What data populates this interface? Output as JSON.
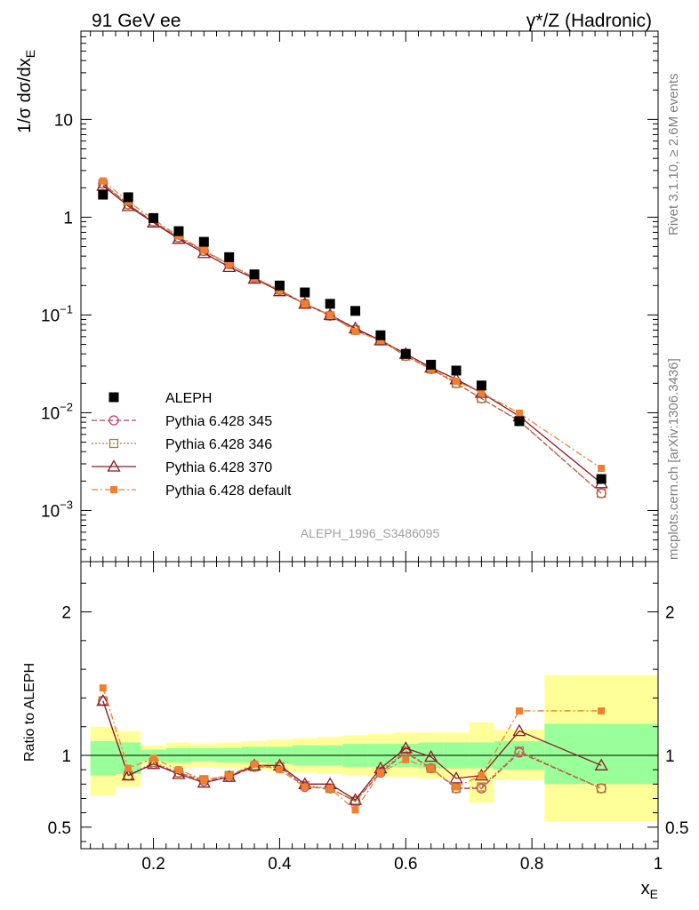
{
  "header": {
    "left_title": "91 GeV ee",
    "right_title": "γ*/Z (Hadronic)",
    "side_text_top": "Rivet 3.1.10, ≥ 2.6M events",
    "side_text_bottom": "mcplots.cern.ch [arXiv:1306.3436]",
    "analysis_label": "ALEPH_1996_S3486095"
  },
  "chart_data": [
    {
      "type": "scatter",
      "panel": "main",
      "ylabel": "1/σ dσ/dx_E",
      "yscale": "log",
      "ylim": [
        0.0003,
        80
      ],
      "xlim": [
        0.085,
        1.0
      ],
      "yticks": [
        {
          "value": 0.001,
          "base": "10",
          "exp": "−3"
        },
        {
          "value": 0.01,
          "base": "10",
          "exp": "−2"
        },
        {
          "value": 0.1,
          "base": "10",
          "exp": "−1"
        },
        {
          "value": 1,
          "label": "1"
        },
        {
          "value": 10,
          "label": "10"
        }
      ],
      "legend_position": "bottom-left",
      "series": [
        {
          "name": "ALEPH",
          "color": "#000000",
          "marker": "filled-square",
          "x": [
            0.12,
            0.16,
            0.2,
            0.24,
            0.28,
            0.32,
            0.36,
            0.4,
            0.44,
            0.48,
            0.52,
            0.56,
            0.6,
            0.64,
            0.68,
            0.72,
            0.78,
            0.91
          ],
          "values": [
            1.7,
            1.6,
            0.98,
            0.72,
            0.56,
            0.39,
            0.26,
            0.2,
            0.17,
            0.13,
            0.11,
            0.062,
            0.04,
            0.031,
            0.027,
            0.019,
            0.0082,
            0.0021
          ]
        },
        {
          "name": "Pythia 6.428 345",
          "color": "#c0405f",
          "marker": "open-circle",
          "dash": "6,3",
          "x": [
            0.12,
            0.16,
            0.2,
            0.24,
            0.28,
            0.32,
            0.36,
            0.4,
            0.44,
            0.48,
            0.52,
            0.56,
            0.6,
            0.64,
            0.68,
            0.72,
            0.78,
            0.91
          ],
          "values": [
            2.2,
            1.35,
            0.9,
            0.62,
            0.45,
            0.33,
            0.24,
            0.18,
            0.13,
            0.098,
            0.07,
            0.055,
            0.038,
            0.028,
            0.02,
            0.014,
            0.0082,
            0.0015
          ]
        },
        {
          "name": "Pythia 6.428 346",
          "color": "#b07d3a",
          "marker": "open-square",
          "dash": "2,2",
          "x": [
            0.12,
            0.16,
            0.2,
            0.24,
            0.28,
            0.32,
            0.36,
            0.4,
            0.44,
            0.48,
            0.52,
            0.56,
            0.6,
            0.64,
            0.68,
            0.72,
            0.78,
            0.91
          ],
          "values": [
            2.2,
            1.35,
            0.9,
            0.62,
            0.45,
            0.33,
            0.24,
            0.18,
            0.13,
            0.098,
            0.07,
            0.055,
            0.038,
            0.028,
            0.02,
            0.014,
            0.0083,
            0.0015
          ]
        },
        {
          "name": "Pythia 6.428 370",
          "color": "#8b1a2a",
          "marker": "open-triangle",
          "dash": "",
          "x": [
            0.12,
            0.16,
            0.2,
            0.24,
            0.28,
            0.32,
            0.36,
            0.4,
            0.44,
            0.48,
            0.52,
            0.56,
            0.6,
            0.64,
            0.68,
            0.72,
            0.78,
            0.91
          ],
          "values": [
            2.1,
            1.3,
            0.88,
            0.6,
            0.43,
            0.31,
            0.235,
            0.175,
            0.13,
            0.1,
            0.073,
            0.055,
            0.04,
            0.029,
            0.022,
            0.016,
            0.0092,
            0.0019
          ]
        },
        {
          "name": "Pythia 6.428 default",
          "color": "#f08030",
          "marker": "filled-square-small",
          "dash": "7,3,2,3",
          "x": [
            0.12,
            0.16,
            0.2,
            0.24,
            0.28,
            0.32,
            0.36,
            0.4,
            0.44,
            0.48,
            0.52,
            0.56,
            0.6,
            0.64,
            0.68,
            0.72,
            0.78,
            0.91
          ],
          "values": [
            2.35,
            1.45,
            0.95,
            0.64,
            0.46,
            0.33,
            0.24,
            0.18,
            0.13,
            0.1,
            0.068,
            0.055,
            0.039,
            0.028,
            0.021,
            0.016,
            0.0099,
            0.0027
          ]
        }
      ]
    },
    {
      "type": "scatter",
      "panel": "ratio",
      "ylabel": "Ratio to ALEPH",
      "xlabel": "x_E",
      "ylim": [
        0.35,
        2.35
      ],
      "xlim": [
        0.085,
        1.0
      ],
      "xticks": [
        0.2,
        0.4,
        0.6,
        0.8,
        1
      ],
      "xtick_labels": [
        "0.2",
        "0.4",
        "0.6",
        "0.8",
        "1"
      ],
      "yticks": [
        0.5,
        1,
        2
      ],
      "ytick_labels": [
        "0.5",
        "1",
        "2"
      ],
      "reference_line": 1,
      "bands": {
        "x_edges": [
          0.1,
          0.14,
          0.18,
          0.22,
          0.26,
          0.3,
          0.34,
          0.38,
          0.42,
          0.46,
          0.5,
          0.54,
          0.58,
          0.62,
          0.66,
          0.7,
          0.74,
          0.82,
          1.0
        ],
        "yellow": [
          [
            0.72,
            1.2
          ],
          [
            0.78,
            1.17
          ],
          [
            0.93,
            1.07
          ],
          [
            0.91,
            1.09
          ],
          [
            0.92,
            1.08
          ],
          [
            0.91,
            1.09
          ],
          [
            0.9,
            1.1
          ],
          [
            0.89,
            1.11
          ],
          [
            0.88,
            1.12
          ],
          [
            0.87,
            1.13
          ],
          [
            0.86,
            1.14
          ],
          [
            0.85,
            1.15
          ],
          [
            0.85,
            1.16
          ],
          [
            0.84,
            1.16
          ],
          [
            0.84,
            1.16
          ],
          [
            0.67,
            1.23
          ],
          [
            0.83,
            1.18
          ],
          [
            0.54,
            1.56
          ]
        ],
        "green": [
          [
            0.86,
            1.1
          ],
          [
            0.87,
            1.09
          ],
          [
            0.96,
            1.04
          ],
          [
            0.95,
            1.05
          ],
          [
            0.96,
            1.05
          ],
          [
            0.95,
            1.05
          ],
          [
            0.95,
            1.06
          ],
          [
            0.94,
            1.06
          ],
          [
            0.93,
            1.07
          ],
          [
            0.93,
            1.07
          ],
          [
            0.92,
            1.08
          ],
          [
            0.92,
            1.08
          ],
          [
            0.92,
            1.08
          ],
          [
            0.91,
            1.09
          ],
          [
            0.91,
            1.09
          ],
          [
            0.91,
            1.09
          ],
          [
            0.9,
            1.1
          ],
          [
            0.8,
            1.22
          ]
        ],
        "yellow_color": "#ffff99",
        "green_color": "#99ff99"
      },
      "series": [
        {
          "name": "Pythia 6.428 345",
          "x": [
            0.12,
            0.16,
            0.2,
            0.24,
            0.28,
            0.32,
            0.36,
            0.4,
            0.44,
            0.48,
            0.52,
            0.56,
            0.6,
            0.64,
            0.68,
            0.72,
            0.78,
            0.91
          ],
          "values": [
            1.38,
            0.86,
            0.94,
            0.88,
            0.82,
            0.85,
            0.92,
            0.92,
            0.78,
            0.77,
            0.68,
            0.88,
            1.02,
            0.91,
            0.77,
            0.77,
            1.02,
            0.77
          ]
        },
        {
          "name": "Pythia 6.428 346",
          "x": [
            0.12,
            0.16,
            0.2,
            0.24,
            0.28,
            0.32,
            0.36,
            0.4,
            0.44,
            0.48,
            0.52,
            0.56,
            0.6,
            0.64,
            0.68,
            0.72,
            0.78,
            0.91
          ],
          "values": [
            1.38,
            0.86,
            0.95,
            0.88,
            0.83,
            0.86,
            0.92,
            0.92,
            0.79,
            0.77,
            0.68,
            0.89,
            1.03,
            0.91,
            0.77,
            0.78,
            1.03,
            0.77
          ]
        },
        {
          "name": "Pythia 6.428 370",
          "x": [
            0.12,
            0.16,
            0.2,
            0.24,
            0.28,
            0.32,
            0.36,
            0.4,
            0.44,
            0.48,
            0.52,
            0.56,
            0.6,
            0.64,
            0.68,
            0.72,
            0.78,
            0.91
          ],
          "values": [
            1.38,
            0.86,
            0.94,
            0.87,
            0.81,
            0.85,
            0.93,
            0.93,
            0.8,
            0.8,
            0.69,
            0.91,
            1.05,
            0.99,
            0.84,
            0.86,
            1.17,
            0.93
          ]
        },
        {
          "name": "Pythia 6.428 default",
          "x": [
            0.12,
            0.16,
            0.2,
            0.24,
            0.28,
            0.32,
            0.36,
            0.4,
            0.44,
            0.48,
            0.52,
            0.56,
            0.6,
            0.64,
            0.68,
            0.72,
            0.78,
            0.91
          ],
          "values": [
            1.47,
            0.91,
            0.98,
            0.9,
            0.83,
            0.86,
            0.94,
            0.9,
            0.78,
            0.77,
            0.62,
            0.88,
            0.97,
            0.91,
            0.78,
            0.86,
            1.31,
            1.31
          ]
        }
      ]
    }
  ]
}
